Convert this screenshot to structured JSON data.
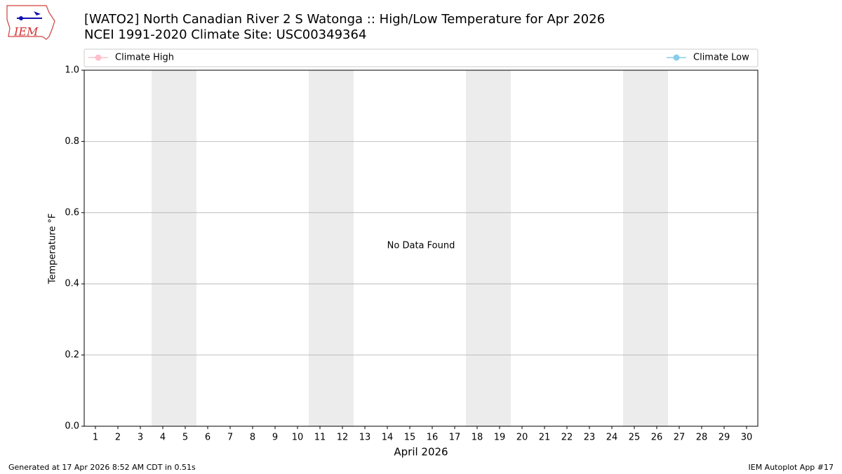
{
  "logo_text": "IEM",
  "chart_data": {
    "type": "line",
    "title": "[WATO2] North Canadian River 2 S Watonga :: High/Low Temperature for Apr 2026",
    "subtitle": "NCEI 1991-2020 Climate Site: USC00349364",
    "xlabel": "April 2026",
    "ylabel": "Temperature °F",
    "annotation": "No Data Found",
    "x": [],
    "series": [
      {
        "name": "Climate High",
        "color": "#ffc0cb",
        "values": []
      },
      {
        "name": "Climate Low",
        "color": "#87ceeb",
        "values": []
      }
    ],
    "xlim": [
      0.5,
      30.5
    ],
    "xticks": [
      1,
      2,
      3,
      4,
      5,
      6,
      7,
      8,
      9,
      10,
      11,
      12,
      13,
      14,
      15,
      16,
      17,
      18,
      19,
      20,
      21,
      22,
      23,
      24,
      25,
      26,
      27,
      28,
      29,
      30
    ],
    "ylim": [
      0,
      1
    ],
    "yticks": [
      {
        "value": 0,
        "label": "0.0"
      },
      0.2,
      0.4,
      0.6,
      0.8,
      {
        "value": 1,
        "label": "1.0"
      }
    ],
    "grid": true,
    "shaded_spans": [
      [
        3.5,
        5.5
      ],
      [
        10.5,
        12.5
      ],
      [
        17.5,
        19.5
      ],
      [
        24.5,
        26.5
      ]
    ],
    "shade_color": "#ececec"
  },
  "footer": {
    "left": "Generated at 17 Apr 2026 8:52 AM CDT in 0.51s",
    "right": "IEM Autoplot App #17"
  }
}
